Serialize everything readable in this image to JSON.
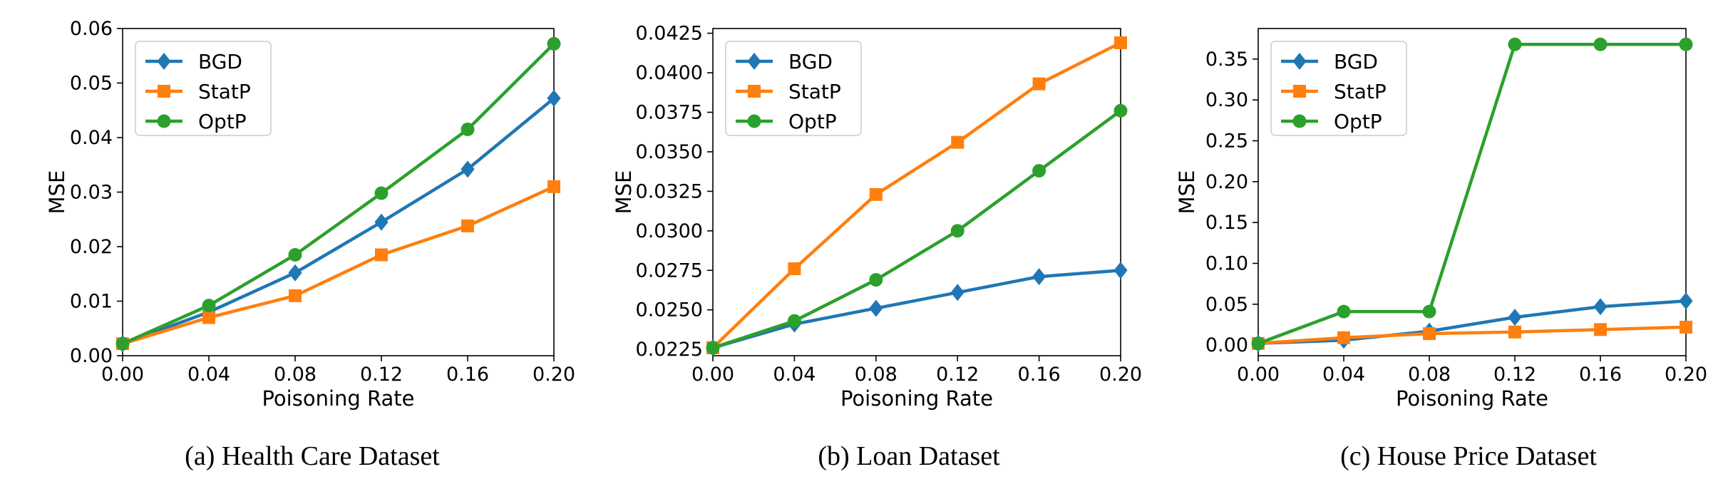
{
  "colors": {
    "BGD": "#1f77b4",
    "StatP": "#ff7f0e",
    "OptP": "#2ca02c"
  },
  "chart_data": [
    {
      "type": "line",
      "caption": "(a) Health Care Dataset",
      "xlabel": "Poisoning Rate",
      "ylabel": "MSE",
      "x": [
        0.0,
        0.04,
        0.08,
        0.12,
        0.16,
        0.2
      ],
      "x_tick_labels": [
        "0.00",
        "0.04",
        "0.08",
        "0.12",
        "0.16",
        "0.20"
      ],
      "xlim": [
        0.0,
        0.2
      ],
      "ylim": [
        0.0,
        0.06
      ],
      "y_ticks": [
        0.0,
        0.01,
        0.02,
        0.03,
        0.04,
        0.05,
        0.06
      ],
      "y_tick_labels": [
        "0.00",
        "0.01",
        "0.02",
        "0.03",
        "0.04",
        "0.05",
        "0.06"
      ],
      "grid": false,
      "legend_position": "top-left",
      "series": [
        {
          "name": "BGD",
          "marker": "diamond",
          "values": [
            0.0022,
            0.008,
            0.0152,
            0.0245,
            0.0342,
            0.0472
          ]
        },
        {
          "name": "StatP",
          "marker": "square",
          "values": [
            0.0022,
            0.007,
            0.011,
            0.0185,
            0.0238,
            0.031
          ]
        },
        {
          "name": "OptP",
          "marker": "circle",
          "values": [
            0.0022,
            0.0092,
            0.0185,
            0.0298,
            0.0415,
            0.0572
          ]
        }
      ]
    },
    {
      "type": "line",
      "caption": "(b) Loan Dataset",
      "xlabel": "Poisoning Rate",
      "ylabel": "MSE",
      "x": [
        0.0,
        0.04,
        0.08,
        0.12,
        0.16,
        0.2
      ],
      "x_tick_labels": [
        "0.00",
        "0.04",
        "0.08",
        "0.12",
        "0.16",
        "0.20"
      ],
      "xlim": [
        0.0,
        0.2
      ],
      "ylim": [
        0.0221,
        0.0428
      ],
      "y_ticks": [
        0.0225,
        0.025,
        0.0275,
        0.03,
        0.0325,
        0.035,
        0.0375,
        0.04,
        0.0425
      ],
      "y_tick_labels": [
        "0.0225",
        "0.0250",
        "0.0275",
        "0.0300",
        "0.0325",
        "0.0350",
        "0.0375",
        "0.0400",
        "0.0425"
      ],
      "grid": false,
      "legend_position": "top-left",
      "series": [
        {
          "name": "BGD",
          "marker": "diamond",
          "values": [
            0.0226,
            0.0241,
            0.0251,
            0.0261,
            0.0271,
            0.0275
          ]
        },
        {
          "name": "StatP",
          "marker": "square",
          "values": [
            0.0226,
            0.0276,
            0.0323,
            0.0356,
            0.0393,
            0.0419
          ]
        },
        {
          "name": "OptP",
          "marker": "circle",
          "values": [
            0.0226,
            0.0243,
            0.0269,
            0.03,
            0.0338,
            0.0376
          ]
        }
      ]
    },
    {
      "type": "line",
      "caption": "(c) House Price Dataset",
      "xlabel": "Poisoning Rate",
      "ylabel": "MSE",
      "x": [
        0.0,
        0.04,
        0.08,
        0.12,
        0.16,
        0.2
      ],
      "x_tick_labels": [
        "0.00",
        "0.04",
        "0.08",
        "0.12",
        "0.16",
        "0.20"
      ],
      "xlim": [
        0.0,
        0.2
      ],
      "ylim": [
        -0.013,
        0.3874
      ],
      "y_ticks": [
        0.0,
        0.05,
        0.1,
        0.15,
        0.2,
        0.25,
        0.3,
        0.35
      ],
      "y_tick_labels": [
        "0.00",
        "0.05",
        "0.10",
        "0.15",
        "0.20",
        "0.25",
        "0.30",
        "0.35"
      ],
      "grid": false,
      "legend_position": "top-left",
      "series": [
        {
          "name": "BGD",
          "marker": "diamond",
          "values": [
            0.002,
            0.006,
            0.017,
            0.034,
            0.047,
            0.054
          ]
        },
        {
          "name": "StatP",
          "marker": "square",
          "values": [
            0.002,
            0.009,
            0.014,
            0.016,
            0.019,
            0.022
          ]
        },
        {
          "name": "OptP",
          "marker": "circle",
          "values": [
            0.002,
            0.041,
            0.041,
            0.368,
            0.368,
            0.368
          ]
        }
      ]
    }
  ]
}
